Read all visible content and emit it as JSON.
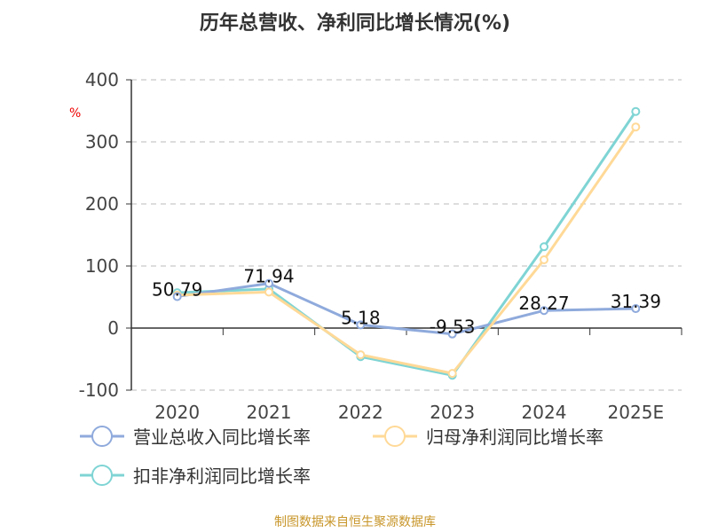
{
  "chart_data": {
    "type": "line",
    "title": "历年总营收、净利同比增长情况(%)",
    "ylabel": "%",
    "categories": [
      "2020",
      "2021",
      "2022",
      "2023",
      "2024",
      "2025E"
    ],
    "ylim": [
      -100,
      400
    ],
    "yticks": [
      -100,
      0,
      100,
      200,
      300,
      400
    ],
    "grid": true,
    "legend_position": "bottom",
    "series": [
      {
        "name": "营业总收入同比增长率",
        "color": "#8faadc",
        "values": [
          50.79,
          71.94,
          5.18,
          -9.53,
          28.27,
          31.39
        ],
        "labels": [
          "50.79",
          "71.94",
          "5.18",
          "-9.53",
          "28.27",
          "31.39"
        ]
      },
      {
        "name": "归母净利润同比增长率",
        "color": "#ffd997",
        "values": [
          53,
          58,
          -43,
          -73,
          110,
          324
        ]
      },
      {
        "name": "扣非净利润同比增长率",
        "color": "#7fd4d4",
        "values": [
          57,
          63,
          -46,
          -76,
          131,
          349
        ]
      }
    ]
  },
  "source": "制图数据来自恒生聚源数据库"
}
